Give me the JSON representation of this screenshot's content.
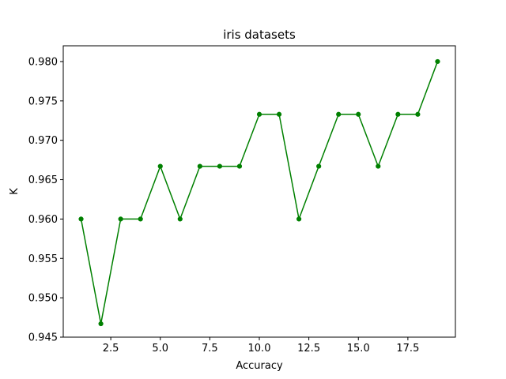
{
  "chart_data": {
    "type": "line",
    "title": "iris datasets",
    "xlabel": "Accuracy",
    "ylabel": "K",
    "xlim": [
      0.1,
      19.9
    ],
    "ylim": [
      0.945,
      0.982
    ],
    "x_ticks": [
      2.5,
      5.0,
      7.5,
      10.0,
      12.5,
      15.0,
      17.5
    ],
    "x_tick_labels": [
      "2.5",
      "5.0",
      "7.5",
      "10.0",
      "12.5",
      "15.0",
      "17.5"
    ],
    "y_ticks": [
      0.945,
      0.95,
      0.955,
      0.96,
      0.965,
      0.97,
      0.975,
      0.98
    ],
    "y_tick_labels": [
      "0.945",
      "0.950",
      "0.955",
      "0.960",
      "0.965",
      "0.970",
      "0.975",
      "0.980"
    ],
    "grid": false,
    "legend": "none",
    "series": [
      {
        "color": "#008000",
        "marker": "circle",
        "x": [
          1,
          2,
          3,
          4,
          5,
          6,
          7,
          8,
          9,
          10,
          11,
          12,
          13,
          14,
          15,
          16,
          17,
          18,
          19
        ],
        "values": [
          0.96,
          0.9467,
          0.96,
          0.96,
          0.9667,
          0.96,
          0.9667,
          0.9667,
          0.9667,
          0.9733,
          0.9733,
          0.96,
          0.9667,
          0.9733,
          0.9733,
          0.9667,
          0.9733,
          0.9733,
          0.98
        ]
      }
    ]
  }
}
